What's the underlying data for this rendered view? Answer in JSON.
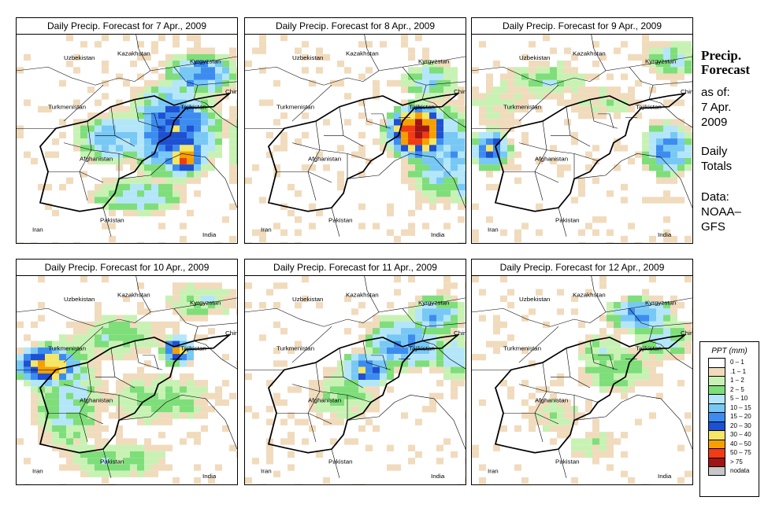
{
  "panels": [
    {
      "title": "Daily Precip. Forecast for  7 Apr., 2009"
    },
    {
      "title": "Daily Precip. Forecast for  8 Apr., 2009"
    },
    {
      "title": "Daily Precip. Forecast for  9 Apr., 2009"
    },
    {
      "title": "Daily Precip. Forecast for  10 Apr., 2009"
    },
    {
      "title": "Daily Precip. Forecast for  11 Apr., 2009"
    },
    {
      "title": "Daily Precip. Forecast for  12 Apr., 2009"
    }
  ],
  "map_labels": {
    "uzbekistan": "Uzbekistan",
    "kazakhstan": "Kazakhstan",
    "kyrgyzstan": "Kyrgyzstan",
    "turkmenistan": "Turkmenistan",
    "tajikistan": "Tajikistan",
    "china": "China",
    "afghanistan": "Afghanistan",
    "pakistan": "Pakistan",
    "iran": "Iran",
    "india": "India"
  },
  "side": {
    "title_line1": "Precip.",
    "title_line2": "Forecast",
    "asof": "as of:",
    "date1": "7 Apr.",
    "date2": "2009",
    "daily1": "Daily",
    "daily2": "Totals",
    "data1": "Data:",
    "data2": "NOAA–",
    "data3": "GFS"
  },
  "legend": {
    "title": "PPT (mm)",
    "classes": [
      {
        "label": "0 – 1",
        "color": "#ffffff"
      },
      {
        "label": ".1 – 1",
        "color": "#f1dbbd"
      },
      {
        "label": "1 – 2",
        "color": "#c8f2b4"
      },
      {
        "label": "2 – 5",
        "color": "#7ede7a"
      },
      {
        "label": "5 – 10",
        "color": "#b4e6fa"
      },
      {
        "label": "10 – 15",
        "color": "#78c8f5"
      },
      {
        "label": "15 – 20",
        "color": "#3c8cf0"
      },
      {
        "label": "20 – 30",
        "color": "#1e50d2"
      },
      {
        "label": "30 – 40",
        "color": "#f5e664"
      },
      {
        "label": "40 – 50",
        "color": "#f5a000"
      },
      {
        "label": "50 – 75",
        "color": "#f03c14"
      },
      {
        "label": "> 75",
        "color": "#a01414"
      },
      {
        "label": "nodata",
        "color": "#c8c8c8"
      }
    ]
  }
}
